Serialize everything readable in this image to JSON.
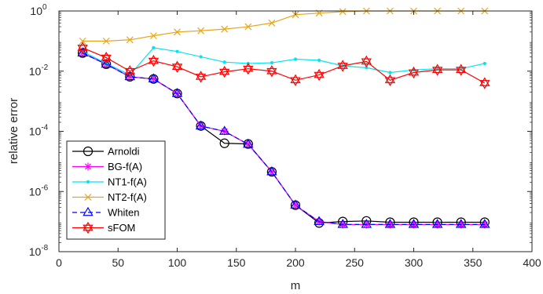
{
  "chart_data": {
    "type": "line",
    "title": "",
    "xlabel": "m",
    "ylabel": "relative error",
    "xlim": [
      0,
      400
    ],
    "ylim": [
      1e-08,
      1
    ],
    "yscale": "log",
    "grid": false,
    "legend_position": "bottom-left",
    "x_ticks": [
      "0",
      "50",
      "100",
      "150",
      "200",
      "250",
      "300",
      "350",
      "400"
    ],
    "y_ticks": [
      {
        "base": "10",
        "exp": "0",
        "value": 1
      },
      {
        "base": "10",
        "exp": "-2",
        "value": 0.01
      },
      {
        "base": "10",
        "exp": "-4",
        "value": 0.0001
      },
      {
        "base": "10",
        "exp": "-6",
        "value": 1e-06
      },
      {
        "base": "10",
        "exp": "-8",
        "value": 1e-08
      }
    ],
    "x": [
      20,
      40,
      60,
      80,
      100,
      120,
      140,
      160,
      180,
      200,
      220,
      240,
      260,
      280,
      300,
      320,
      340,
      360
    ],
    "series": [
      {
        "name": "Arnoldi",
        "color": "#000000",
        "marker": "circle",
        "dash": "solid",
        "values": [
          0.04,
          0.017,
          0.0065,
          0.0055,
          0.0018,
          0.00015,
          4e-05,
          3.8e-05,
          4.5e-06,
          3.5e-07,
          9e-08,
          1e-07,
          1.05e-07,
          9.5e-08,
          9.5e-08,
          9.5e-08,
          9.5e-08,
          9.5e-08
        ]
      },
      {
        "name": "BG-f(A)",
        "color": "#ff00ff",
        "marker": "asterisk",
        "dash": "solid",
        "values": [
          0.04,
          0.017,
          0.0065,
          0.0055,
          0.0018,
          0.00015,
          0.0001,
          3.7e-05,
          4.5e-06,
          3.5e-07,
          1e-07,
          8e-08,
          8e-08,
          8e-08,
          8e-08,
          8e-08,
          8e-08,
          8e-08
        ]
      },
      {
        "name": "NT1-f(A)",
        "color": "#00e5ee",
        "marker": "dot",
        "dash": "solid",
        "values": [
          0.045,
          0.018,
          0.0075,
          0.06,
          0.045,
          0.03,
          0.02,
          0.018,
          0.019,
          0.025,
          0.023,
          0.015,
          0.013,
          0.009,
          0.011,
          0.012,
          0.012,
          0.018
        ]
      },
      {
        "name": "NT2-f(A)",
        "color": "#e6a61a",
        "marker": "x",
        "dash": "solid",
        "values": [
          0.1,
          0.1,
          0.11,
          0.15,
          0.2,
          0.22,
          0.25,
          0.3,
          0.4,
          0.75,
          0.85,
          0.95,
          1.0,
          1.0,
          1.0,
          1.0,
          1.0,
          1.0
        ]
      },
      {
        "name": "Whiten",
        "color": "#0000ff",
        "marker": "triangle",
        "dash": "dashed",
        "values": [
          0.04,
          0.017,
          0.0065,
          0.0055,
          0.0018,
          0.00015,
          0.0001,
          3.7e-05,
          4.5e-06,
          3.5e-07,
          1e-07,
          8e-08,
          8e-08,
          8e-08,
          8e-08,
          8e-08,
          8e-08,
          8e-08
        ]
      },
      {
        "name": "sFOM",
        "color": "#ff0000",
        "marker": "hexagram",
        "dash": "solid",
        "values": [
          0.06,
          0.028,
          0.01,
          0.022,
          0.014,
          0.0065,
          0.0095,
          0.012,
          0.01,
          0.005,
          0.0075,
          0.015,
          0.021,
          0.005,
          0.009,
          0.011,
          0.011,
          0.004
        ]
      }
    ]
  }
}
